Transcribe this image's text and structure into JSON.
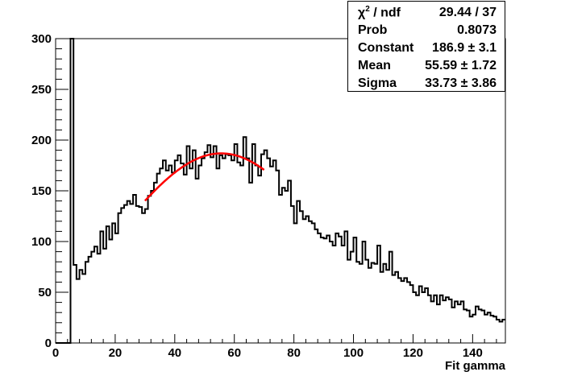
{
  "chart_data": {
    "type": "histogram",
    "xlabel": "Fit gamma",
    "ylabel": "",
    "xlim": [
      0,
      151
    ],
    "ylim": [
      0,
      300
    ],
    "x_ticks": [
      0,
      20,
      40,
      60,
      80,
      100,
      120,
      140
    ],
    "y_ticks": [
      0,
      50,
      100,
      150,
      200,
      250,
      300
    ],
    "bin_width": 1,
    "bin_start": 0,
    "counts": [
      0,
      0,
      0,
      0,
      0,
      300,
      77,
      63,
      72,
      68,
      80,
      85,
      90,
      95,
      88,
      110,
      93,
      115,
      102,
      118,
      108,
      128,
      133,
      136,
      140,
      137,
      146,
      135,
      134,
      128,
      132,
      145,
      150,
      158,
      167,
      172,
      180,
      170,
      175,
      168,
      180,
      185,
      177,
      166,
      194,
      172,
      190,
      162,
      175,
      182,
      188,
      195,
      183,
      194,
      172,
      185,
      182,
      186,
      185,
      180,
      196,
      178,
      175,
      203,
      182,
      158,
      196,
      175,
      165,
      186,
      190,
      182,
      174,
      180,
      170,
      146,
      153,
      150,
      160,
      135,
      118,
      140,
      130,
      122,
      125,
      120,
      118,
      112,
      108,
      104,
      103,
      106,
      100,
      96,
      108,
      105,
      96,
      110,
      82,
      90,
      104,
      80,
      78,
      100,
      82,
      74,
      79,
      78,
      96,
      70,
      78,
      72,
      90,
      67,
      70,
      64,
      61,
      64,
      60,
      57,
      50,
      47,
      56,
      50,
      54,
      47,
      41,
      47,
      38,
      47,
      42,
      45,
      43,
      35,
      41,
      38,
      41,
      33,
      32,
      26,
      28,
      36,
      33,
      32,
      28,
      30,
      27,
      26,
      23,
      21,
      23
    ],
    "series": [
      {
        "name": "",
        "type": "function",
        "function": "gaussian",
        "x_range": [
          30,
          70
        ],
        "constant": 186.9,
        "mean": 55.59,
        "sigma": 33.73
      }
    ],
    "stats_box": {
      "position": "top-right",
      "rows": [
        {
          "label": "χ / ndf",
          "label_sup": "2",
          "value": "29.44 / 37"
        },
        {
          "label": "Prob",
          "value": "0.8073"
        },
        {
          "label": "Constant",
          "value": "186.9 ± 3.1"
        },
        {
          "label": "Mean",
          "value": "55.59 ± 1.72"
        },
        {
          "label": "Sigma",
          "value": "33.73 ± 3.86"
        }
      ]
    },
    "colors": {
      "histogram": "#000000",
      "fit": "#ff0000",
      "background": "#ffffff"
    }
  }
}
